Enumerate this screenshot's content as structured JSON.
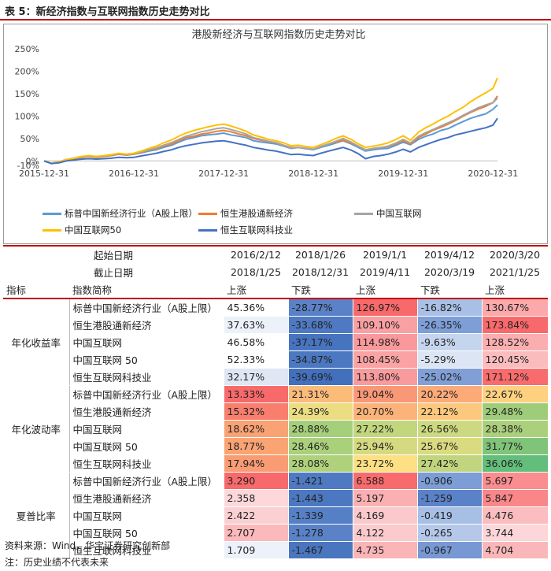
{
  "header": {
    "title": "表 5：新经济指数与互联网指数历史走势对比"
  },
  "chart_data": {
    "type": "line",
    "title": "港股新经济与互联网指数历史走势对比",
    "ylim": [
      -0.1,
      2.5
    ],
    "yticks": [
      "-10%",
      "0%",
      "50%",
      "100%",
      "150%",
      "200%",
      "250%"
    ],
    "ytick_values": [
      -0.1,
      0,
      0.5,
      1.0,
      1.5,
      2.0,
      2.5
    ],
    "xticks": [
      "2015-12-31",
      "2016-12-31",
      "2017-12-31",
      "2018-12-31",
      "2019-12-31",
      "2020-12-31"
    ],
    "xtick_values": [
      0,
      1,
      2,
      3,
      4,
      5
    ],
    "x": [
      0,
      0.08,
      0.17,
      0.25,
      0.33,
      0.42,
      0.5,
      0.58,
      0.67,
      0.75,
      0.83,
      0.92,
      1.0,
      1.08,
      1.17,
      1.25,
      1.33,
      1.42,
      1.5,
      1.58,
      1.67,
      1.75,
      1.83,
      1.92,
      2.0,
      2.08,
      2.17,
      2.25,
      2.33,
      2.42,
      2.5,
      2.58,
      2.67,
      2.75,
      2.83,
      2.92,
      3.0,
      3.08,
      3.17,
      3.25,
      3.33,
      3.42,
      3.5,
      3.58,
      3.67,
      3.75,
      3.83,
      3.92,
      4.0,
      4.08,
      4.17,
      4.25,
      4.33,
      4.42,
      4.5,
      4.58,
      4.67,
      4.75,
      4.83,
      4.92,
      5.0,
      5.05
    ],
    "series": [
      {
        "name": "标普中国新经济行业（A股上限）",
        "color": "#5b9bd5",
        "values": [
          0,
          -0.05,
          -0.02,
          0.03,
          0.05,
          0.08,
          0.1,
          0.08,
          0.1,
          0.12,
          0.15,
          0.13,
          0.15,
          0.18,
          0.22,
          0.25,
          0.3,
          0.35,
          0.42,
          0.48,
          0.52,
          0.56,
          0.58,
          0.6,
          0.62,
          0.58,
          0.55,
          0.52,
          0.45,
          0.42,
          0.4,
          0.38,
          0.33,
          0.28,
          0.3,
          0.27,
          0.25,
          0.3,
          0.35,
          0.4,
          0.45,
          0.38,
          0.3,
          0.22,
          0.25,
          0.27,
          0.28,
          0.35,
          0.42,
          0.36,
          0.48,
          0.55,
          0.6,
          0.68,
          0.72,
          0.8,
          0.88,
          0.95,
          1.0,
          1.05,
          1.15,
          1.25
        ]
      },
      {
        "name": "恒生港股通新经济",
        "color": "#ed7d31",
        "values": [
          0,
          -0.05,
          -0.02,
          0.03,
          0.05,
          0.08,
          0.1,
          0.08,
          0.1,
          0.12,
          0.15,
          0.13,
          0.15,
          0.19,
          0.24,
          0.27,
          0.33,
          0.38,
          0.45,
          0.52,
          0.55,
          0.6,
          0.62,
          0.66,
          0.68,
          0.65,
          0.6,
          0.56,
          0.5,
          0.46,
          0.43,
          0.4,
          0.35,
          0.3,
          0.3,
          0.28,
          0.26,
          0.32,
          0.38,
          0.42,
          0.46,
          0.4,
          0.33,
          0.25,
          0.28,
          0.3,
          0.32,
          0.38,
          0.45,
          0.38,
          0.52,
          0.6,
          0.68,
          0.75,
          0.82,
          0.9,
          1.0,
          1.08,
          1.15,
          1.22,
          1.3,
          1.45
        ]
      },
      {
        "name": "中国互联网",
        "color": "#a5a5a5",
        "values": [
          0,
          -0.05,
          -0.02,
          0.03,
          0.06,
          0.09,
          0.11,
          0.09,
          0.11,
          0.13,
          0.16,
          0.14,
          0.16,
          0.2,
          0.25,
          0.29,
          0.35,
          0.41,
          0.48,
          0.55,
          0.6,
          0.65,
          0.68,
          0.72,
          0.74,
          0.7,
          0.65,
          0.6,
          0.52,
          0.48,
          0.44,
          0.41,
          0.35,
          0.29,
          0.3,
          0.28,
          0.26,
          0.32,
          0.38,
          0.44,
          0.5,
          0.42,
          0.33,
          0.24,
          0.28,
          0.3,
          0.33,
          0.4,
          0.48,
          0.4,
          0.55,
          0.63,
          0.7,
          0.78,
          0.85,
          0.92,
          1.02,
          1.1,
          1.18,
          1.25,
          1.3,
          1.4
        ]
      },
      {
        "name": "中国互联网50",
        "color": "#ffc000",
        "values": [
          0,
          -0.05,
          -0.02,
          0.03,
          0.06,
          0.1,
          0.12,
          0.1,
          0.12,
          0.14,
          0.17,
          0.15,
          0.17,
          0.22,
          0.28,
          0.33,
          0.4,
          0.47,
          0.55,
          0.62,
          0.68,
          0.72,
          0.76,
          0.8,
          0.82,
          0.78,
          0.72,
          0.66,
          0.58,
          0.53,
          0.48,
          0.45,
          0.4,
          0.34,
          0.35,
          0.32,
          0.3,
          0.36,
          0.43,
          0.5,
          0.56,
          0.48,
          0.38,
          0.3,
          0.33,
          0.36,
          0.4,
          0.48,
          0.56,
          0.46,
          0.64,
          0.74,
          0.82,
          0.92,
          1.0,
          1.1,
          1.2,
          1.32,
          1.42,
          1.52,
          1.62,
          1.85
        ]
      },
      {
        "name": "恒生互联网科技业",
        "color": "#4472c4",
        "values": [
          0,
          -0.06,
          -0.04,
          0.0,
          0.02,
          0.04,
          0.05,
          0.04,
          0.05,
          0.06,
          0.08,
          0.07,
          0.08,
          0.11,
          0.14,
          0.17,
          0.21,
          0.25,
          0.3,
          0.34,
          0.37,
          0.4,
          0.42,
          0.44,
          0.45,
          0.42,
          0.38,
          0.35,
          0.3,
          0.27,
          0.24,
          0.22,
          0.18,
          0.14,
          0.15,
          0.13,
          0.12,
          0.17,
          0.22,
          0.26,
          0.3,
          0.24,
          0.16,
          0.05,
          0.1,
          0.12,
          0.15,
          0.2,
          0.26,
          0.2,
          0.3,
          0.36,
          0.42,
          0.48,
          0.52,
          0.58,
          0.62,
          0.66,
          0.7,
          0.74,
          0.8,
          0.95
        ]
      }
    ]
  },
  "legend": [
    {
      "label": "标普中国新经济行业（A股上限）",
      "color": "#5b9bd5"
    },
    {
      "label": "恒生港股通新经济",
      "color": "#ed7d31"
    },
    {
      "label": "中国互联网",
      "color": "#a5a5a5"
    },
    {
      "label": "中国互联网50",
      "color": "#ffc000"
    },
    {
      "label": "恒生互联网科技业",
      "color": "#4472c4"
    }
  ],
  "table": {
    "start_label": "起始日期",
    "end_label": "截止日期",
    "start_dates": [
      "2016/2/12",
      "2018/1/26",
      "2019/1/1",
      "2019/4/12",
      "2020/3/20"
    ],
    "end_dates": [
      "2018/1/25",
      "2018/12/31",
      "2019/4/11",
      "2020/3/19",
      "2021/1/25"
    ],
    "col_indicator": "指标",
    "col_index": "指数简称",
    "trends": [
      "上涨",
      "下跌",
      "上涨",
      "下跌",
      "上涨"
    ],
    "groups": [
      {
        "label": "年化收益率",
        "rows": [
          {
            "name": "标普中国新经济行业（A股上限）",
            "values": [
              "45.36%",
              "-28.77%",
              "126.97%",
              "-16.82%",
              "130.67%"
            ],
            "colors": [
              "#ffffff",
              "#5b82c8",
              "#f8696b",
              "#a9c0e6",
              "#fba9ab"
            ]
          },
          {
            "name": "恒生港股通新经济",
            "values": [
              "37.63%",
              "-33.68%",
              "109.10%",
              "-26.35%",
              "173.84%"
            ],
            "colors": [
              "#edf1fa",
              "#4f79c2",
              "#f9a0a2",
              "#7d9ed6",
              "#f8696b"
            ]
          },
          {
            "name": "中国互联网",
            "values": [
              "46.58%",
              "-37.17%",
              "114.98%",
              "-9.63%",
              "128.52%"
            ],
            "colors": [
              "#ffffff",
              "#4774bf",
              "#f9999b",
              "#c6d5ee",
              "#fbaeb0"
            ]
          },
          {
            "name": "中国互联网 50",
            "values": [
              "52.33%",
              "-34.87%",
              "108.45%",
              "-5.29%",
              "120.45%"
            ],
            "colors": [
              "#ffffff",
              "#4c78c1",
              "#faa2a4",
              "#dce5f4",
              "#fbbcbe"
            ]
          },
          {
            "name": "恒生互联网科技业",
            "values": [
              "32.17%",
              "-39.69%",
              "113.80%",
              "-25.02%",
              "171.12%"
            ],
            "colors": [
              "#dfe7f5",
              "#4370bd",
              "#f99b9d",
              "#819fd6",
              "#f86c6e"
            ]
          }
        ]
      },
      {
        "label": "年化波动率",
        "rows": [
          {
            "name": "标普中国新经济行业（A股上限）",
            "values": [
              "13.33%",
              "21.31%",
              "19.04%",
              "20.22%",
              "22.67%"
            ],
            "colors": [
              "#f8696b",
              "#fbbc7a",
              "#f99876",
              "#fbaa78",
              "#fdd17f"
            ]
          },
          {
            "name": "恒生港股通新经济",
            "values": [
              "15.32%",
              "24.39%",
              "20.70%",
              "22.12%",
              "29.48%"
            ],
            "colors": [
              "#f87e6e",
              "#ecdd82",
              "#fcb379",
              "#fcc87d",
              "#9fcc7a"
            ]
          },
          {
            "name": "中国互联网",
            "values": [
              "18.62%",
              "28.88%",
              "27.22%",
              "26.56%",
              "28.38%"
            ],
            "colors": [
              "#f9a274",
              "#a6cf7b",
              "#c2d67e",
              "#cdd980",
              "#abd07c"
            ]
          },
          {
            "name": "中国互联网 50",
            "values": [
              "18.77%",
              "28.46%",
              "25.94%",
              "25.67%",
              "31.77%"
            ],
            "colors": [
              "#faa474",
              "#aad07c",
              "#d5da80",
              "#dadb81",
              "#80c47a"
            ]
          },
          {
            "name": "恒生互联网科技业",
            "values": [
              "17.94%",
              "28.08%",
              "23.72%",
              "27.42%",
              "36.06%"
            ],
            "colors": [
              "#f99c74",
              "#b0d17c",
              "#fde083",
              "#c0d57e",
              "#63be7b"
            ]
          }
        ]
      },
      {
        "label": "夏普比率",
        "rows": [
          {
            "name": "标普中国新经济行业（A股上限）",
            "values": [
              "3.290",
              "-1.421",
              "6.588",
              "-0.906",
              "5.697"
            ],
            "colors": [
              "#f8696b",
              "#4f7ac2",
              "#f86b6d",
              "#7c9dd5",
              "#f98d8f"
            ]
          },
          {
            "name": "恒生港股通新经济",
            "values": [
              "2.358",
              "-1.443",
              "5.197",
              "-1.259",
              "5.847"
            ],
            "colors": [
              "#fcd8da",
              "#4c78c1",
              "#fab0b2",
              "#5b82c8",
              "#f98789"
            ]
          },
          {
            "name": "中国互联网",
            "values": [
              "2.422",
              "-1.339",
              "4.169",
              "-0.419",
              "4.476"
            ],
            "colors": [
              "#fbd0d2",
              "#5580c6",
              "#fbc9cb",
              "#a8bfe5",
              "#fbbdbf"
            ]
          },
          {
            "name": "中国互联网 50",
            "values": [
              "2.707",
              "-1.278",
              "4.122",
              "-0.265",
              "3.744"
            ],
            "colors": [
              "#fbb9bb",
              "#5a82c8",
              "#fbcacc",
              "#b5c8ea",
              "#fcd6d8"
            ]
          },
          {
            "name": "恒生互联网科技业",
            "values": [
              "1.709",
              "-1.467",
              "4.735",
              "-0.967",
              "4.704"
            ],
            "colors": [
              "#edf1fa",
              "#4a76c0",
              "#fab5b7",
              "#7798d3",
              "#fab7b9"
            ]
          }
        ]
      }
    ]
  },
  "notes": {
    "source": "资料来源：Wind，华宝证券研究创新部",
    "disclaimer": "注：历史业绩不代表未来"
  }
}
